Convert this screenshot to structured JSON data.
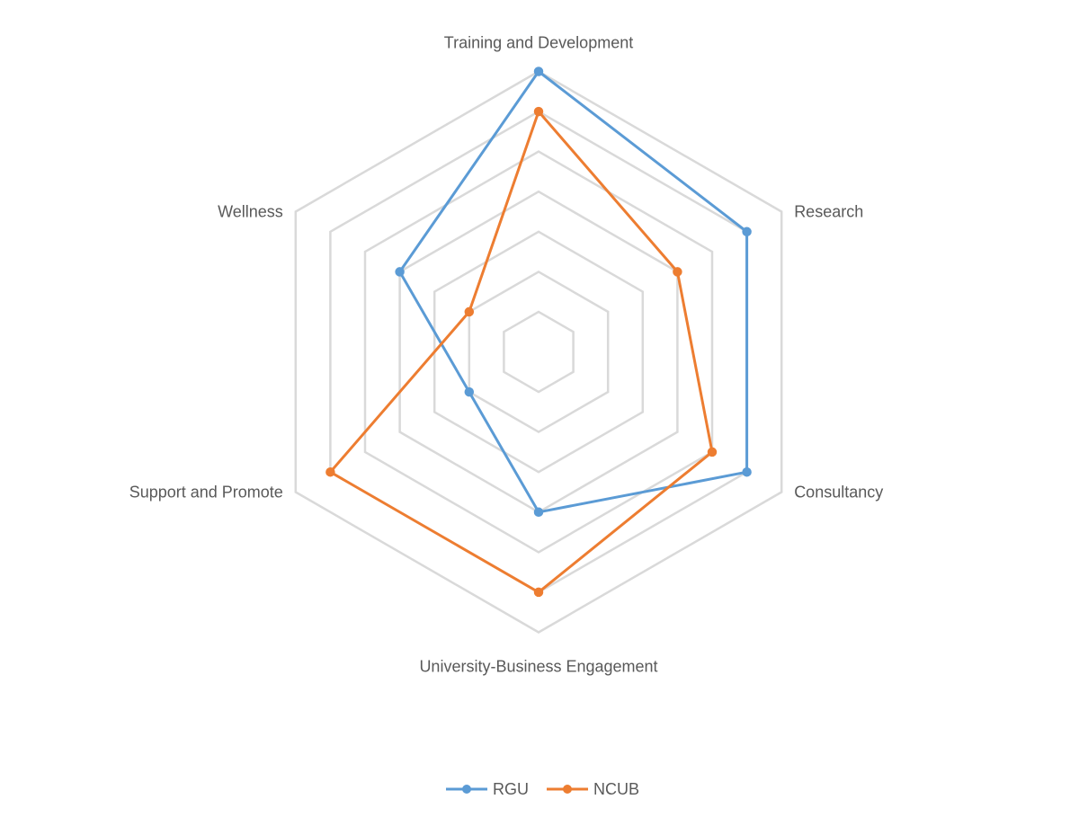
{
  "chart_data": {
    "type": "radar",
    "categories": [
      "Training and Development",
      "Research",
      "Consultancy",
      "University-Business Engagement",
      "Support and Promote",
      "Wellness"
    ],
    "rlim": [
      0,
      7
    ],
    "rings": 7,
    "grid": true,
    "legend_position": "bottom",
    "series": [
      {
        "name": "RGU",
        "color": "#5B9BD5",
        "values": [
          7.0,
          6.0,
          6.0,
          4.0,
          2.0,
          4.0
        ]
      },
      {
        "name": "NCUB",
        "color": "#ED7D31",
        "values": [
          6.0,
          4.0,
          5.0,
          6.0,
          6.0,
          2.0
        ]
      }
    ]
  }
}
